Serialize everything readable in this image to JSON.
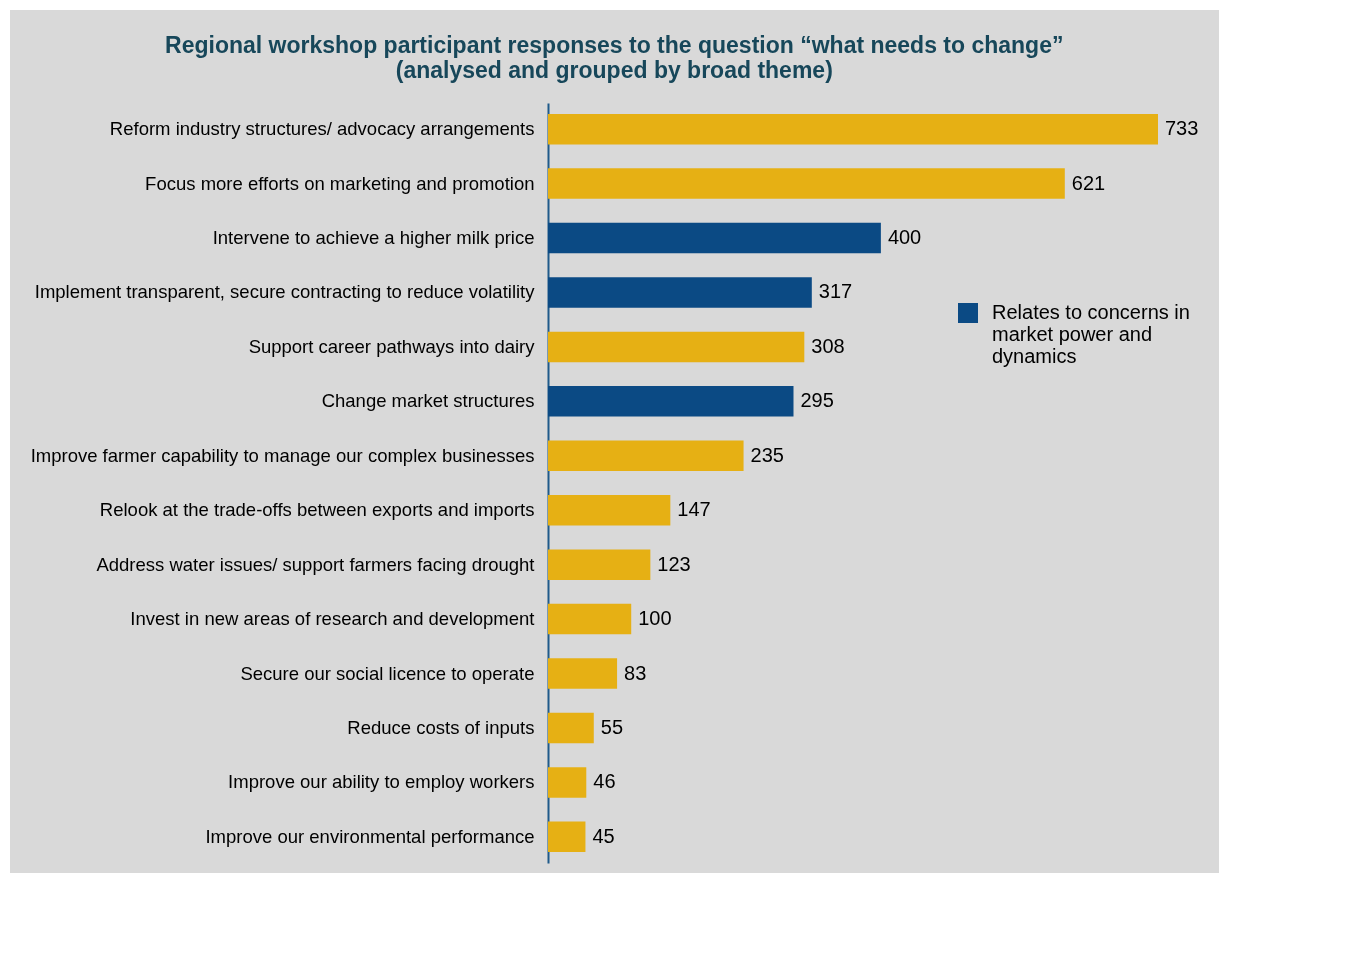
{
  "chart_data": {
    "type": "bar",
    "orientation": "horizontal",
    "title": "Regional workshop participant responses to the question “what needs to change”\n(analysed and grouped by broad theme)",
    "categories": [
      "Reform industry structures/ advocacy arrangements",
      "Focus more efforts on marketing and promotion",
      "Intervene to achieve a higher milk price",
      "Implement transparent, secure contracting to reduce volatility",
      "Support career pathways into dairy",
      "Change market structures",
      "Improve farmer capability to manage our complex businesses",
      "Relook at the trade-offs between exports and imports",
      "Address water issues/ support farmers facing drought",
      "Invest in new areas of research and development",
      "Secure our social licence to operate",
      "Reduce costs of inputs",
      "Improve our ability to employ workers",
      "Improve our environmental performance"
    ],
    "series": [
      {
        "color": "#e6b014",
        "values": [
          733,
          621,
          null,
          null,
          308,
          null,
          235,
          147,
          123,
          100,
          83,
          55,
          46,
          45
        ]
      },
      {
        "name": "Relates to concerns in market power and dynamics",
        "color": "#0b4a84",
        "values": [
          null,
          null,
          400,
          317,
          null,
          295,
          null,
          null,
          null,
          null,
          null,
          null,
          null,
          null
        ]
      }
    ],
    "data_labels": true,
    "legend": "right"
  }
}
